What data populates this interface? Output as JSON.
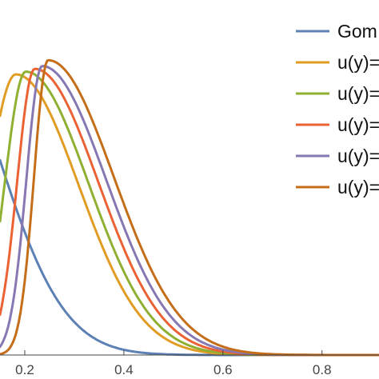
{
  "chart_data": {
    "type": "line",
    "title": "",
    "xlabel": "",
    "ylabel": "",
    "xlim": [
      0.15,
      0.915
    ],
    "ylim": [
      0,
      1.15
    ],
    "grid": false,
    "legend_placement": "right",
    "x_ticks": [
      {
        "value": 0.2,
        "label": "0.2"
      },
      {
        "value": 0.4,
        "label": "0.4"
      },
      {
        "value": 0.6,
        "label": "0.6"
      },
      {
        "value": 0.8,
        "label": "0.8"
      }
    ],
    "series": [
      {
        "name": "Gom",
        "color": "#5e81b5",
        "peak_x": 0.0,
        "peak_y": 1.14,
        "width_left": 0.25,
        "width_right": 0.195
      },
      {
        "name": "u(y)=",
        "color": "#e19c24",
        "peak_x": 0.182,
        "peak_y": 0.909,
        "width_left": 0.08,
        "width_right": 0.179
      },
      {
        "name": "u(y)=",
        "color": "#8fb032",
        "peak_x": 0.202,
        "peak_y": 0.918,
        "width_left": 0.06,
        "width_right": 0.179
      },
      {
        "name": "u(y)=",
        "color": "#eb6235",
        "peak_x": 0.22,
        "peak_y": 0.927,
        "width_left": 0.05,
        "width_right": 0.181
      },
      {
        "name": "u(y)=",
        "color": "#8778b3",
        "peak_x": 0.235,
        "peak_y": 0.936,
        "width_left": 0.045,
        "width_right": 0.183
      },
      {
        "name": "u(y)=",
        "color": "#c56e1a",
        "peak_x": 0.247,
        "peak_y": 0.955,
        "width_left": 0.04,
        "width_right": 0.187
      }
    ]
  }
}
